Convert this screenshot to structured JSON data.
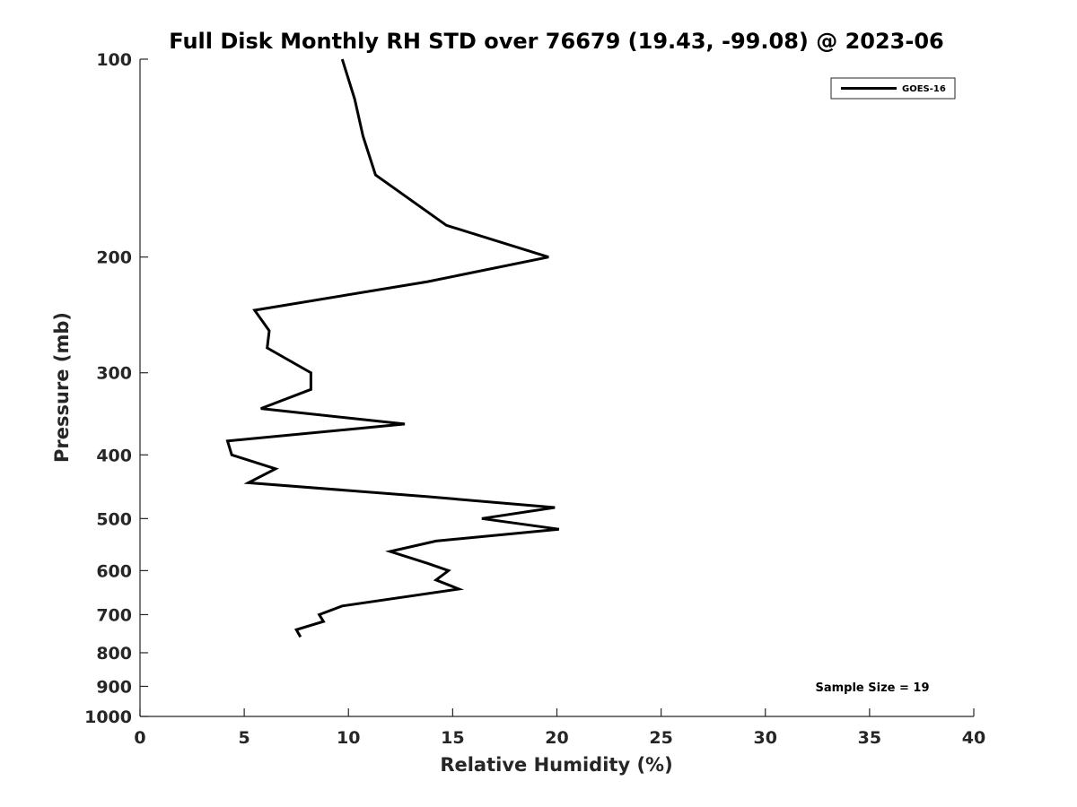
{
  "chart_data": {
    "type": "line",
    "title": "Full Disk Monthly RH STD over 76679 (19.43, -99.08) @ 2023-06",
    "xlabel": "Relative Humidity (%)",
    "ylabel": "Pressure (mb)",
    "xlim": [
      0,
      40
    ],
    "ylim": [
      100,
      1000
    ],
    "y_scale": "log",
    "y_reversed": true,
    "grid": false,
    "legend_position": "top-right",
    "x_ticks": [
      "0",
      "5",
      "10",
      "15",
      "20",
      "25",
      "30",
      "35",
      "40"
    ],
    "y_ticks": [
      "100",
      "200",
      "300",
      "400",
      "500",
      "600",
      "700",
      "800",
      "900",
      "1000"
    ],
    "annotation": "Sample Size = 19",
    "series": [
      {
        "name": "GOES-16",
        "color": "#000000",
        "points": [
          {
            "x": 9.7,
            "y": 100
          },
          {
            "x": 10.3,
            "y": 115
          },
          {
            "x": 10.7,
            "y": 131
          },
          {
            "x": 11.3,
            "y": 150
          },
          {
            "x": 14.7,
            "y": 179
          },
          {
            "x": 19.6,
            "y": 200
          },
          {
            "x": 13.8,
            "y": 218
          },
          {
            "x": 5.5,
            "y": 241
          },
          {
            "x": 6.2,
            "y": 259
          },
          {
            "x": 6.1,
            "y": 275
          },
          {
            "x": 8.2,
            "y": 300
          },
          {
            "x": 8.2,
            "y": 318
          },
          {
            "x": 5.8,
            "y": 340
          },
          {
            "x": 12.7,
            "y": 359
          },
          {
            "x": 4.2,
            "y": 381
          },
          {
            "x": 4.4,
            "y": 400
          },
          {
            "x": 6.5,
            "y": 420
          },
          {
            "x": 5.2,
            "y": 441
          },
          {
            "x": 13.8,
            "y": 463
          },
          {
            "x": 19.9,
            "y": 481
          },
          {
            "x": 16.4,
            "y": 500
          },
          {
            "x": 20.1,
            "y": 519
          },
          {
            "x": 14.2,
            "y": 541
          },
          {
            "x": 12.0,
            "y": 561
          },
          {
            "x": 13.8,
            "y": 585
          },
          {
            "x": 14.8,
            "y": 600
          },
          {
            "x": 14.2,
            "y": 620
          },
          {
            "x": 15.3,
            "y": 640
          },
          {
            "x": 9.7,
            "y": 679
          },
          {
            "x": 8.6,
            "y": 700
          },
          {
            "x": 8.8,
            "y": 717
          },
          {
            "x": 7.5,
            "y": 738
          },
          {
            "x": 7.7,
            "y": 757
          }
        ]
      }
    ]
  }
}
